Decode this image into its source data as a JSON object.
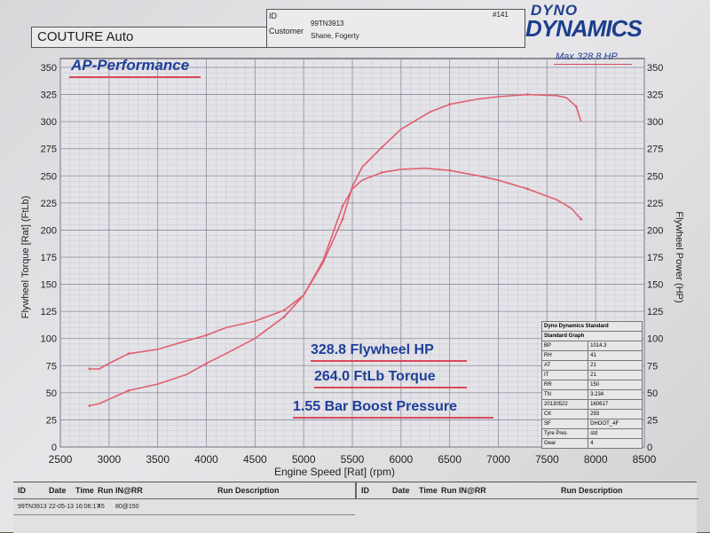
{
  "header": {
    "company": "COUTURE Auto",
    "id_label": "ID",
    "id_value": "99TN3913",
    "customer_label": "Customer",
    "customer_value": "Shane, Fogerty",
    "sheet_number": "#141",
    "logo_line1": "DYNO",
    "logo_line2": "DYNAMICS"
  },
  "overlay": {
    "shop_name": "AP-Performance",
    "max_label": "Max 328.8 HP",
    "stat1": "328.8 Flywheel HP",
    "stat2": "264.0 FtLb Torque",
    "stat3": "1.55 Bar Boost Pressure"
  },
  "info_table": {
    "title1": "Dyno Dynamics Standard",
    "title2": "Standard Graph",
    "rows": [
      [
        "BP",
        "1014.3"
      ],
      [
        "RH",
        "41"
      ],
      [
        "AT",
        "21"
      ],
      [
        "IT",
        "21"
      ],
      [
        "RR",
        "150"
      ],
      [
        "TN",
        "3.234"
      ],
      [
        "20130522",
        "160617"
      ],
      [
        "CK",
        "293"
      ],
      [
        "SF",
        "DHOOT_4F"
      ],
      [
        "Tyre Pres",
        "std"
      ],
      [
        "Gear",
        "4"
      ]
    ]
  },
  "bottom_table": {
    "headers_left": [
      "ID",
      "Date",
      "Time",
      "Run",
      "IN@RR",
      "Run Description"
    ],
    "headers_right": [
      "ID",
      "Date",
      "Time",
      "Run",
      "IN@RR",
      "Run Description"
    ],
    "row": [
      "99TN3913",
      "22-05-13",
      "16:06:17",
      "45",
      "80@150",
      ""
    ]
  },
  "chart_data": {
    "type": "line",
    "xlabel": "Engine Speed [Rat] (rpm)",
    "ylabel_left": "Flywheel Torque [Rat] (FtLb)",
    "ylabel_right": "Flywheel Power (HP)",
    "xlim": [
      2500,
      8500
    ],
    "ylim_left": [
      0,
      350
    ],
    "ylim_right": [
      0,
      350
    ],
    "x_ticks": [
      2500,
      3000,
      3500,
      4000,
      4500,
      5000,
      5500,
      6000,
      6500,
      7000,
      7500,
      8000,
      8500
    ],
    "y_ticks_left": [
      0,
      25,
      50,
      75,
      100,
      125,
      150,
      175,
      200,
      225,
      250,
      275,
      300,
      325,
      350
    ],
    "y_ticks_right": [
      0,
      25,
      50,
      75,
      100,
      125,
      150,
      175,
      200,
      225,
      250,
      275,
      300,
      325,
      350
    ],
    "grid": true,
    "series": [
      {
        "axis": "left",
        "color": "#e06070",
        "x": [
          2800,
          2900,
          3000,
          3200,
          3500,
          3800,
          4000,
          4200,
          4500,
          4800,
          5000,
          5200,
          5400,
          5500,
          5600,
          5800,
          6000,
          6250,
          6500,
          6800,
          7000,
          7300,
          7600,
          7750,
          7850
        ],
        "values": [
          72,
          72,
          77,
          86,
          90,
          98,
          103,
          110,
          116,
          126,
          140,
          172,
          222,
          238,
          246,
          253,
          256,
          257,
          255,
          250,
          246,
          238,
          228,
          220,
          210
        ]
      },
      {
        "axis": "right",
        "color": "#e06070",
        "x": [
          2800,
          2900,
          3000,
          3200,
          3500,
          3800,
          4000,
          4200,
          4500,
          4800,
          5000,
          5200,
          5400,
          5500,
          5600,
          5800,
          6000,
          6300,
          6500,
          6800,
          7000,
          7300,
          7600,
          7700,
          7800,
          7850
        ],
        "values": [
          38,
          40,
          44,
          52,
          58,
          67,
          77,
          86,
          100,
          120,
          140,
          170,
          210,
          240,
          258,
          276,
          293,
          309,
          316,
          321,
          323,
          325,
          324,
          322,
          314,
          300
        ]
      }
    ]
  }
}
